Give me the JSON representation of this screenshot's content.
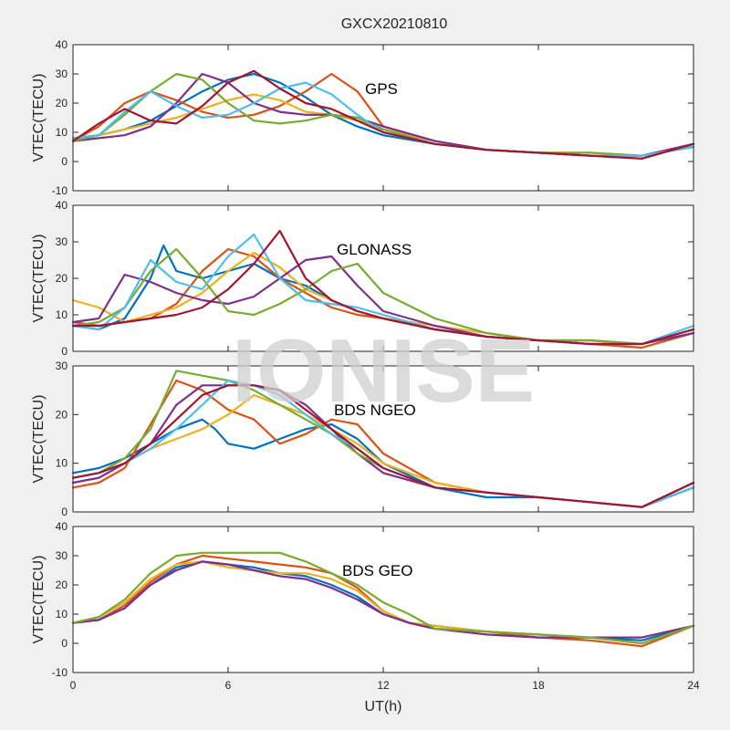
{
  "figure": {
    "title": "GXCX20210810",
    "xlabel": "UT(h)",
    "watermark": "IONISE"
  },
  "colors": [
    "#0072BD",
    "#D95319",
    "#EDB120",
    "#7E2F8E",
    "#77AC30",
    "#4DBEEE",
    "#A2142F"
  ],
  "chart_data": [
    {
      "type": "line",
      "annotation": "GPS",
      "ylabel": "VTEC(TECU)",
      "xlim": [
        0,
        24
      ],
      "ylim": [
        -10,
        40
      ],
      "xticks": [
        0,
        6,
        12,
        18,
        24
      ],
      "yticks": [
        -10,
        0,
        10,
        20,
        30,
        40
      ],
      "grid": false,
      "series": [
        {
          "x": [
            0,
            1,
            2,
            3,
            4,
            5,
            6,
            7,
            8,
            9,
            10,
            11,
            12,
            14,
            16,
            18,
            20,
            22,
            24
          ],
          "y": [
            8,
            9,
            11,
            14,
            19,
            24,
            28,
            30,
            27,
            22,
            16,
            12,
            9,
            6,
            4,
            3,
            2,
            2,
            5
          ]
        },
        {
          "x": [
            0,
            1,
            2,
            3,
            4,
            5,
            6,
            7,
            8,
            9,
            10,
            11,
            12,
            14,
            16,
            18,
            20,
            22,
            24
          ],
          "y": [
            7,
            12,
            20,
            24,
            21,
            17,
            15,
            16,
            19,
            24,
            30,
            24,
            12,
            7,
            4,
            3,
            2,
            1,
            6
          ]
        },
        {
          "x": [
            0,
            1,
            2,
            3,
            4,
            5,
            6,
            7,
            8,
            9,
            10,
            11,
            12,
            14,
            16,
            18,
            20,
            22,
            24
          ],
          "y": [
            8,
            9,
            11,
            13,
            15,
            18,
            21,
            23,
            21,
            17,
            16,
            14,
            11,
            7,
            4,
            3,
            3,
            2,
            5
          ]
        },
        {
          "x": [
            0,
            1,
            2,
            3,
            4,
            5,
            6,
            7,
            8,
            9,
            10,
            11,
            12,
            14,
            16,
            18,
            20,
            22,
            24
          ],
          "y": [
            7,
            8,
            9,
            12,
            20,
            30,
            27,
            20,
            17,
            16,
            16,
            15,
            12,
            7,
            4,
            3,
            2,
            2,
            6
          ]
        },
        {
          "x": [
            0,
            1,
            2,
            3,
            4,
            5,
            6,
            7,
            8,
            9,
            10,
            11,
            12,
            14,
            16,
            18,
            20,
            22,
            24
          ],
          "y": [
            7,
            9,
            16,
            24,
            30,
            28,
            20,
            14,
            13,
            14,
            16,
            15,
            11,
            6,
            4,
            3,
            3,
            2,
            5
          ]
        },
        {
          "x": [
            0,
            1,
            2,
            3,
            4,
            5,
            6,
            7,
            8,
            9,
            10,
            11,
            12,
            14,
            16,
            18,
            20,
            22,
            24
          ],
          "y": [
            8,
            9,
            17,
            24,
            19,
            15,
            16,
            20,
            25,
            27,
            23,
            16,
            10,
            6,
            4,
            3,
            2,
            2,
            5
          ]
        },
        {
          "x": [
            0,
            1,
            2,
            3,
            4,
            5,
            6,
            7,
            8,
            9,
            10,
            11,
            12,
            14,
            16,
            18,
            20,
            22,
            24
          ],
          "y": [
            7,
            13,
            18,
            14,
            13,
            19,
            27,
            31,
            25,
            20,
            18,
            14,
            10,
            6,
            4,
            3,
            2,
            1,
            6
          ]
        }
      ]
    },
    {
      "type": "line",
      "annotation": "GLONASS",
      "ylabel": "VTEC(TECU)",
      "xlim": [
        0,
        24
      ],
      "ylim": [
        0,
        40
      ],
      "xticks": [
        0,
        6,
        12,
        18,
        24
      ],
      "yticks": [
        0,
        10,
        20,
        30,
        40
      ],
      "grid": false,
      "series": [
        {
          "x": [
            0,
            1,
            2,
            3,
            3.5,
            4,
            5,
            6,
            7,
            8,
            9,
            10,
            11,
            12,
            14,
            16,
            18,
            20,
            22,
            24
          ],
          "y": [
            7,
            6,
            9,
            20,
            29,
            22,
            20,
            22,
            24,
            20,
            18,
            14,
            11,
            9,
            6,
            4,
            3,
            2,
            2,
            6
          ]
        },
        {
          "x": [
            0,
            1,
            2,
            3,
            4,
            5,
            6,
            7,
            8,
            9,
            10,
            11,
            12,
            14,
            16,
            18,
            20,
            22,
            24
          ],
          "y": [
            8,
            7,
            8,
            9,
            13,
            22,
            28,
            26,
            20,
            16,
            12,
            10,
            9,
            6,
            4,
            3,
            2,
            1,
            5
          ]
        },
        {
          "x": [
            0,
            1,
            2,
            3,
            4,
            5,
            6,
            7,
            8,
            9,
            10,
            11,
            12,
            14,
            16,
            18,
            20,
            22,
            24
          ],
          "y": [
            14,
            12,
            8,
            10,
            12,
            16,
            22,
            27,
            23,
            17,
            14,
            11,
            9,
            7,
            5,
            3,
            2,
            2,
            6
          ]
        },
        {
          "x": [
            0,
            1,
            2,
            3,
            4,
            5,
            6,
            7,
            8,
            9,
            10,
            11,
            12,
            14,
            16,
            18,
            20,
            22,
            24
          ],
          "y": [
            8,
            9,
            21,
            19,
            16,
            14,
            13,
            15,
            20,
            25,
            26,
            18,
            11,
            7,
            4,
            3,
            3,
            2,
            5
          ]
        },
        {
          "x": [
            0,
            1,
            2,
            3,
            4,
            5,
            6,
            7,
            8,
            9,
            10,
            11,
            12,
            14,
            16,
            18,
            20,
            22,
            24
          ],
          "y": [
            7,
            8,
            12,
            22,
            28,
            20,
            11,
            10,
            13,
            17,
            22,
            24,
            16,
            9,
            5,
            3,
            3,
            2,
            6
          ]
        },
        {
          "x": [
            0,
            1,
            2,
            3,
            4,
            5,
            6,
            7,
            8,
            9,
            10,
            11,
            12,
            14,
            16,
            18,
            20,
            22,
            24
          ],
          "y": [
            7,
            6,
            12,
            25,
            19,
            17,
            26,
            32,
            20,
            14,
            13,
            12,
            10,
            6,
            4,
            3,
            2,
            2,
            7
          ]
        },
        {
          "x": [
            0,
            1,
            2,
            3,
            4,
            5,
            6,
            7,
            8,
            9,
            10,
            11,
            12,
            14,
            16,
            18,
            20,
            22,
            24
          ],
          "y": [
            7,
            7,
            8,
            9,
            10,
            12,
            17,
            24,
            33,
            20,
            14,
            11,
            9,
            6,
            4,
            3,
            2,
            2,
            6
          ]
        }
      ]
    },
    {
      "type": "line",
      "annotation": "BDS NGEO",
      "ylabel": "VTEC(TECU)",
      "xlim": [
        0,
        24
      ],
      "ylim": [
        0,
        30
      ],
      "xticks": [
        0,
        6,
        12,
        18,
        24
      ],
      "yticks": [
        0,
        10,
        20,
        30
      ],
      "grid": false,
      "series": [
        {
          "x": [
            0,
            1,
            2,
            3,
            4,
            5,
            5.5,
            6,
            7,
            8,
            9,
            10,
            11,
            12,
            14,
            16,
            18,
            20,
            22,
            24
          ],
          "y": [
            8,
            9,
            11,
            14,
            17,
            19,
            17,
            14,
            13,
            15,
            17,
            18,
            15,
            10,
            5,
            3,
            3,
            2,
            1,
            6
          ]
        },
        {
          "x": [
            0,
            1,
            2,
            3,
            4,
            5,
            6,
            7,
            8,
            9,
            10,
            11,
            12,
            14,
            16,
            18,
            20,
            22,
            24
          ],
          "y": [
            5,
            6,
            9,
            18,
            27,
            25,
            21,
            19,
            14,
            16,
            19,
            18,
            12,
            6,
            4,
            3,
            2,
            1,
            5
          ]
        },
        {
          "x": [
            0,
            1,
            2,
            3,
            4,
            5,
            6,
            7,
            8,
            9,
            10,
            11,
            12,
            14,
            16,
            18,
            20,
            22,
            24
          ],
          "y": [
            6,
            7,
            10,
            13,
            15,
            17,
            20,
            24,
            22,
            20,
            17,
            14,
            10,
            6,
            4,
            3,
            2,
            1,
            6
          ]
        },
        {
          "x": [
            0,
            1,
            2,
            3,
            4,
            5,
            6,
            7,
            8,
            9,
            10,
            11,
            12,
            14,
            16,
            18,
            20,
            22,
            24
          ],
          "y": [
            6,
            7,
            10,
            14,
            22,
            26,
            26,
            26,
            25,
            22,
            17,
            12,
            8,
            5,
            4,
            3,
            2,
            1,
            5
          ]
        },
        {
          "x": [
            0,
            1,
            2,
            3,
            4,
            5,
            6,
            7,
            8,
            9,
            10,
            11,
            12,
            14,
            16,
            18,
            20,
            22,
            24
          ],
          "y": [
            7,
            8,
            11,
            17,
            29,
            28,
            27,
            25,
            22,
            19,
            16,
            12,
            9,
            5,
            4,
            3,
            2,
            1,
            5
          ]
        },
        {
          "x": [
            0,
            1,
            2,
            3,
            4,
            5,
            6,
            7,
            8,
            9,
            10,
            11,
            12,
            14,
            16,
            18,
            20,
            22,
            24
          ],
          "y": [
            7,
            8,
            10,
            13,
            17,
            22,
            27,
            26,
            24,
            20,
            16,
            13,
            9,
            5,
            4,
            3,
            2,
            1,
            5
          ]
        },
        {
          "x": [
            0,
            1,
            2,
            3,
            4,
            5,
            6,
            7,
            8,
            9,
            10,
            11,
            12,
            14,
            16,
            18,
            20,
            22,
            24
          ],
          "y": [
            7,
            8,
            10,
            14,
            19,
            24,
            26,
            26,
            25,
            21,
            17,
            13,
            9,
            5,
            4,
            3,
            2,
            1,
            6
          ]
        }
      ]
    },
    {
      "type": "line",
      "annotation": "BDS GEO",
      "ylabel": "VTEC(TECU)",
      "xlim": [
        0,
        24
      ],
      "ylim": [
        -10,
        40
      ],
      "xticks": [
        0,
        6,
        12,
        18,
        24
      ],
      "yticks": [
        -10,
        0,
        10,
        20,
        30,
        40
      ],
      "grid": false,
      "series": [
        {
          "x": [
            0,
            1,
            2,
            3,
            4,
            5,
            6,
            7,
            8,
            9,
            10,
            11,
            12,
            13,
            14,
            16,
            18,
            20,
            22,
            24
          ],
          "y": [
            7,
            8,
            13,
            20,
            26,
            28,
            27,
            26,
            24,
            23,
            20,
            16,
            10,
            7,
            6,
            4,
            3,
            2,
            1,
            6
          ]
        },
        {
          "x": [
            0,
            1,
            2,
            3,
            4,
            5,
            6,
            7,
            8,
            9,
            10,
            11,
            12,
            13,
            14,
            16,
            18,
            20,
            22,
            24
          ],
          "y": [
            7,
            8,
            13,
            21,
            27,
            30,
            29,
            28,
            27,
            26,
            24,
            19,
            11,
            7,
            5,
            4,
            2,
            1,
            -1,
            6
          ]
        },
        {
          "x": [
            0,
            1,
            2,
            3,
            4,
            5,
            6,
            7,
            8,
            9,
            10,
            11,
            12,
            13,
            14,
            16,
            18,
            20,
            22,
            24
          ],
          "y": [
            7,
            9,
            14,
            22,
            27,
            28,
            26,
            25,
            24,
            24,
            22,
            18,
            11,
            7,
            6,
            4,
            3,
            2,
            0,
            6
          ]
        },
        {
          "x": [
            0,
            1,
            2,
            3,
            4,
            5,
            6,
            7,
            8,
            9,
            10,
            11,
            12,
            13,
            14,
            16,
            18,
            20,
            22,
            24
          ],
          "y": [
            7,
            8,
            12,
            20,
            25,
            28,
            27,
            25,
            23,
            22,
            19,
            15,
            10,
            7,
            5,
            3,
            2,
            2,
            2,
            6
          ]
        },
        {
          "x": [
            0,
            1,
            2,
            3,
            4,
            5,
            6,
            7,
            8,
            9,
            10,
            11,
            12,
            13,
            14,
            16,
            18,
            20,
            22,
            24
          ],
          "y": [
            7,
            9,
            15,
            24,
            30,
            31,
            31,
            31,
            31,
            28,
            24,
            20,
            14,
            10,
            5,
            4,
            3,
            2,
            0,
            6
          ]
        }
      ]
    }
  ]
}
